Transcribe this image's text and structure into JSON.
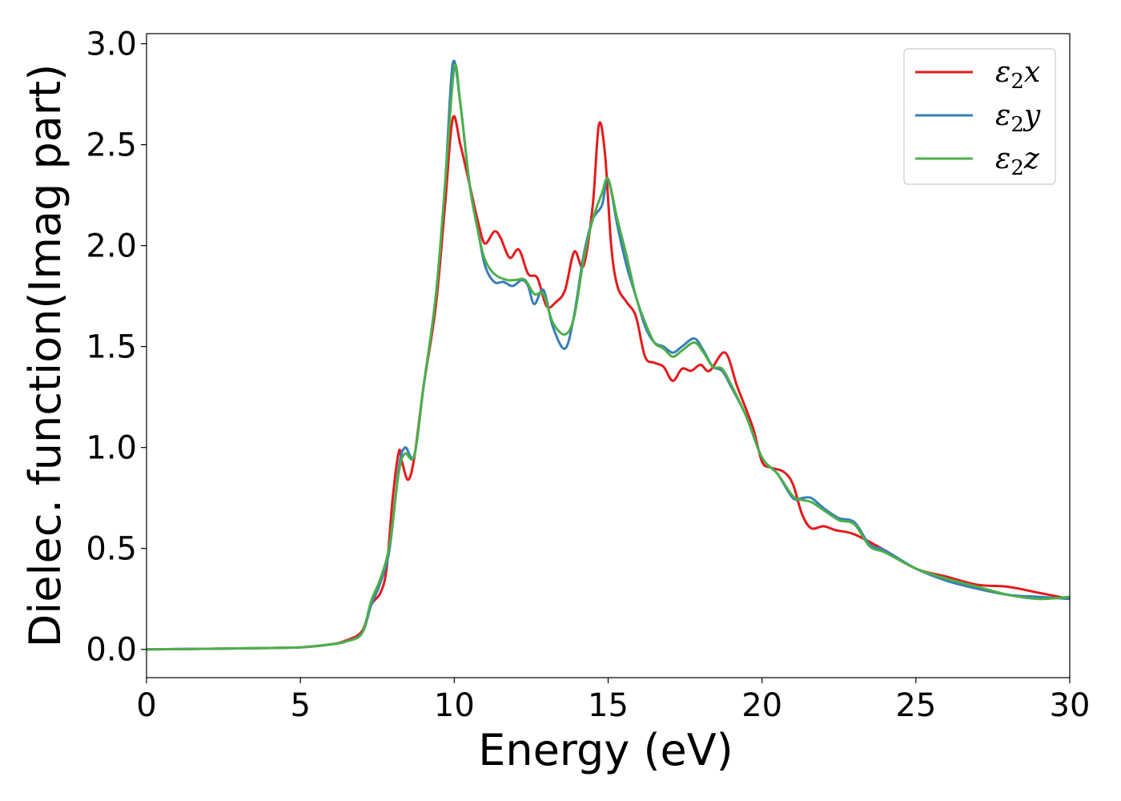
{
  "chart_data": {
    "type": "line",
    "xlabel": "Energy (eV)",
    "ylabel": "Dielec. function(Imag part)",
    "xlim": [
      0,
      30
    ],
    "ylim": [
      -0.14,
      3.05
    ],
    "x_ticks": [
      "0",
      "5",
      "10",
      "15",
      "20",
      "25",
      "30"
    ],
    "y_ticks": [
      "0.0",
      "0.5",
      "1.0",
      "1.5",
      "2.0",
      "2.5",
      "3.0"
    ],
    "grid": false,
    "legend_position": "top-right",
    "series": [
      {
        "name": "ε2x",
        "legend": {
          "base": "ε",
          "sub": "2",
          "var": "x"
        },
        "color": "#e41a1c",
        "points": [
          [
            0,
            0
          ],
          [
            2,
            0.003
          ],
          [
            4,
            0.007
          ],
          [
            5,
            0.01
          ],
          [
            6,
            0.025
          ],
          [
            6.5,
            0.045
          ],
          [
            7,
            0.09
          ],
          [
            7.3,
            0.22
          ],
          [
            7.6,
            0.28
          ],
          [
            7.8,
            0.4
          ],
          [
            8.0,
            0.75
          ],
          [
            8.2,
            0.98
          ],
          [
            8.3,
            0.93
          ],
          [
            8.5,
            0.84
          ],
          [
            8.7,
            0.95
          ],
          [
            9.0,
            1.3
          ],
          [
            9.4,
            1.7
          ],
          [
            9.7,
            2.2
          ],
          [
            9.95,
            2.63
          ],
          [
            10.2,
            2.5
          ],
          [
            10.5,
            2.3
          ],
          [
            10.8,
            2.1
          ],
          [
            11.0,
            2.01
          ],
          [
            11.3,
            2.07
          ],
          [
            11.5,
            2.04
          ],
          [
            11.8,
            1.94
          ],
          [
            12.1,
            1.98
          ],
          [
            12.4,
            1.86
          ],
          [
            12.7,
            1.84
          ],
          [
            13.0,
            1.7
          ],
          [
            13.3,
            1.72
          ],
          [
            13.6,
            1.78
          ],
          [
            13.9,
            1.97
          ],
          [
            14.2,
            1.9
          ],
          [
            14.5,
            2.2
          ],
          [
            14.7,
            2.6
          ],
          [
            14.9,
            2.45
          ],
          [
            15.1,
            2.0
          ],
          [
            15.3,
            1.8
          ],
          [
            15.6,
            1.72
          ],
          [
            15.9,
            1.65
          ],
          [
            16.2,
            1.45
          ],
          [
            16.5,
            1.42
          ],
          [
            16.8,
            1.4
          ],
          [
            17.1,
            1.33
          ],
          [
            17.4,
            1.39
          ],
          [
            17.7,
            1.38
          ],
          [
            18.0,
            1.41
          ],
          [
            18.3,
            1.38
          ],
          [
            18.8,
            1.47
          ],
          [
            19.2,
            1.3
          ],
          [
            19.7,
            1.1
          ],
          [
            20.0,
            0.93
          ],
          [
            20.3,
            0.9
          ],
          [
            20.7,
            0.88
          ],
          [
            21.0,
            0.82
          ],
          [
            21.3,
            0.67
          ],
          [
            21.6,
            0.6
          ],
          [
            22.0,
            0.61
          ],
          [
            22.4,
            0.59
          ],
          [
            23.0,
            0.57
          ],
          [
            24.0,
            0.49
          ],
          [
            25.0,
            0.4
          ],
          [
            26.0,
            0.36
          ],
          [
            27.0,
            0.32
          ],
          [
            28.0,
            0.31
          ],
          [
            29.0,
            0.28
          ],
          [
            30.0,
            0.25
          ]
        ]
      },
      {
        "name": "ε2y",
        "legend": {
          "base": "ε",
          "sub": "2",
          "var": "y"
        },
        "color": "#377eb8",
        "points": [
          [
            0,
            0
          ],
          [
            2,
            0.003
          ],
          [
            4,
            0.007
          ],
          [
            5,
            0.01
          ],
          [
            6,
            0.025
          ],
          [
            6.5,
            0.04
          ],
          [
            7,
            0.08
          ],
          [
            7.3,
            0.22
          ],
          [
            7.6,
            0.33
          ],
          [
            7.9,
            0.5
          ],
          [
            8.2,
            0.9
          ],
          [
            8.4,
            1.0
          ],
          [
            8.7,
            0.96
          ],
          [
            9.0,
            1.3
          ],
          [
            9.4,
            1.75
          ],
          [
            9.7,
            2.3
          ],
          [
            9.95,
            2.9
          ],
          [
            10.2,
            2.7
          ],
          [
            10.5,
            2.3
          ],
          [
            10.8,
            2.05
          ],
          [
            11.0,
            1.9
          ],
          [
            11.3,
            1.82
          ],
          [
            11.6,
            1.82
          ],
          [
            11.9,
            1.8
          ],
          [
            12.2,
            1.83
          ],
          [
            12.4,
            1.8
          ],
          [
            12.6,
            1.71
          ],
          [
            12.9,
            1.78
          ],
          [
            13.2,
            1.6
          ],
          [
            13.6,
            1.49
          ],
          [
            13.9,
            1.66
          ],
          [
            14.2,
            1.95
          ],
          [
            14.5,
            2.13
          ],
          [
            14.8,
            2.2
          ],
          [
            15.0,
            2.33
          ],
          [
            15.3,
            2.1
          ],
          [
            15.6,
            1.9
          ],
          [
            15.9,
            1.75
          ],
          [
            16.2,
            1.6
          ],
          [
            16.5,
            1.52
          ],
          [
            16.8,
            1.5
          ],
          [
            17.1,
            1.47
          ],
          [
            17.4,
            1.5
          ],
          [
            17.8,
            1.54
          ],
          [
            18.1,
            1.48
          ],
          [
            18.4,
            1.4
          ],
          [
            18.7,
            1.38
          ],
          [
            19.0,
            1.3
          ],
          [
            19.5,
            1.15
          ],
          [
            20.0,
            0.95
          ],
          [
            20.5,
            0.87
          ],
          [
            21.0,
            0.75
          ],
          [
            21.3,
            0.75
          ],
          [
            21.6,
            0.75
          ],
          [
            22.0,
            0.7
          ],
          [
            22.5,
            0.65
          ],
          [
            23.0,
            0.63
          ],
          [
            23.5,
            0.52
          ],
          [
            24.0,
            0.49
          ],
          [
            25.0,
            0.4
          ],
          [
            26.0,
            0.34
          ],
          [
            27.0,
            0.3
          ],
          [
            28.0,
            0.27
          ],
          [
            29.0,
            0.26
          ],
          [
            30.0,
            0.25
          ]
        ]
      },
      {
        "name": "ε2z",
        "legend": {
          "base": "ε",
          "sub": "2",
          "var": "z"
        },
        "color": "#4daf4a",
        "points": [
          [
            0,
            0
          ],
          [
            2,
            0.003
          ],
          [
            4,
            0.007
          ],
          [
            5,
            0.01
          ],
          [
            6,
            0.025
          ],
          [
            6.5,
            0.04
          ],
          [
            7,
            0.08
          ],
          [
            7.3,
            0.24
          ],
          [
            7.6,
            0.35
          ],
          [
            7.9,
            0.52
          ],
          [
            8.2,
            0.88
          ],
          [
            8.4,
            0.97
          ],
          [
            8.7,
            0.96
          ],
          [
            9.0,
            1.3
          ],
          [
            9.4,
            1.75
          ],
          [
            9.7,
            2.3
          ],
          [
            10.0,
            2.88
          ],
          [
            10.2,
            2.7
          ],
          [
            10.5,
            2.3
          ],
          [
            10.8,
            2.05
          ],
          [
            11.0,
            1.93
          ],
          [
            11.3,
            1.86
          ],
          [
            11.7,
            1.83
          ],
          [
            12.0,
            1.83
          ],
          [
            12.3,
            1.83
          ],
          [
            12.6,
            1.76
          ],
          [
            12.9,
            1.76
          ],
          [
            13.2,
            1.62
          ],
          [
            13.6,
            1.56
          ],
          [
            13.9,
            1.65
          ],
          [
            14.2,
            1.93
          ],
          [
            14.5,
            2.13
          ],
          [
            14.8,
            2.26
          ],
          [
            15.0,
            2.33
          ],
          [
            15.3,
            2.13
          ],
          [
            15.6,
            1.95
          ],
          [
            15.9,
            1.75
          ],
          [
            16.2,
            1.62
          ],
          [
            16.5,
            1.52
          ],
          [
            16.8,
            1.49
          ],
          [
            17.1,
            1.45
          ],
          [
            17.4,
            1.48
          ],
          [
            17.8,
            1.52
          ],
          [
            18.1,
            1.47
          ],
          [
            18.4,
            1.4
          ],
          [
            18.7,
            1.39
          ],
          [
            19.0,
            1.31
          ],
          [
            19.5,
            1.15
          ],
          [
            20.0,
            0.95
          ],
          [
            20.5,
            0.87
          ],
          [
            21.0,
            0.76
          ],
          [
            21.3,
            0.74
          ],
          [
            21.6,
            0.73
          ],
          [
            22.0,
            0.69
          ],
          [
            22.5,
            0.64
          ],
          [
            23.0,
            0.62
          ],
          [
            23.5,
            0.51
          ],
          [
            24.0,
            0.48
          ],
          [
            25.0,
            0.4
          ],
          [
            26.0,
            0.35
          ],
          [
            27.0,
            0.31
          ],
          [
            28.0,
            0.27
          ],
          [
            29.0,
            0.25
          ],
          [
            30.0,
            0.26
          ]
        ]
      }
    ]
  }
}
